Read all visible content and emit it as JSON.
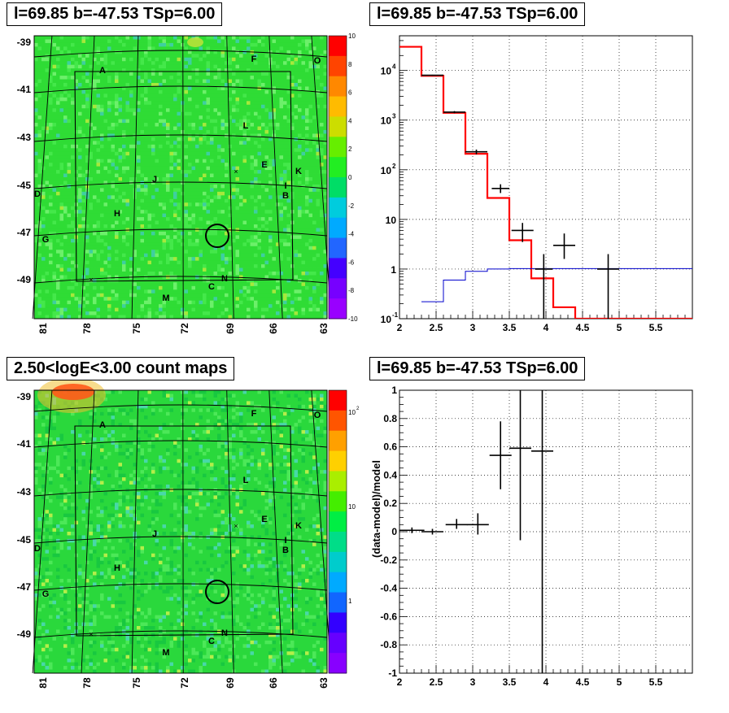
{
  "titles": {
    "tl": "l=69.85 b=-47.53 TSp=6.00",
    "tr": "l=69.85 b=-47.53 TSp=6.00",
    "bl": "2.50<logE<3.00 count maps",
    "br": "l=69.85 b=-47.53 TSp=6.00"
  },
  "colors": {
    "data": "#000000",
    "model": "#ff0000",
    "background_model": "#0000cc",
    "map_base": "#22dd22"
  },
  "maps": {
    "lon_ticks": [
      "81",
      "78",
      "75",
      "72",
      "69",
      "66",
      "63"
    ],
    "lat_ticks": [
      "-39",
      "-41",
      "-43",
      "-45",
      "-47",
      "-49"
    ],
    "source_labels": [
      "A",
      "F",
      "O",
      "L",
      "E",
      "K",
      "I",
      "B",
      "J",
      "D",
      "H",
      "G",
      "N",
      "C",
      "M"
    ],
    "residual_scale": [
      "10",
      "8",
      "6",
      "4",
      "2",
      "0",
      "-2",
      "-4",
      "-6",
      "-8",
      "-10"
    ],
    "count_scale": [
      "10",
      "2",
      "10",
      "1"
    ]
  },
  "chart_data": [
    {
      "type": "line",
      "title": "l=69.85 b=-47.53 TSp=6.00",
      "xlim": [
        2,
        6
      ],
      "ylim": [
        0.1,
        50000
      ],
      "yscale": "log",
      "grid": true,
      "x_ticks": [
        "2",
        "2.5",
        "3",
        "3.5",
        "4",
        "4.5",
        "5",
        "5.5"
      ],
      "y_ticks": [
        "10^-1",
        "1",
        "10",
        "10^2",
        "10^3",
        "10^4"
      ],
      "series": [
        {
          "style": "step",
          "bin_edges": [
            2.0,
            2.3,
            2.6,
            2.9,
            3.2,
            3.5,
            3.8,
            4.1,
            4.4,
            6.0
          ],
          "values": [
            30000,
            7800,
            1400,
            210,
            27,
            3.8,
            0.65,
            0.17,
            0.1
          ]
        },
        {
          "style": "step",
          "bin_edges": [
            2.3,
            2.6,
            2.9,
            3.2,
            3.5,
            6.0
          ],
          "values": [
            0.22,
            0.6,
            0.9,
            1.0,
            1.02
          ]
        },
        {
          "style": "errorbars",
          "points": [
            {
              "x": 2.45,
              "xerr": 0.15,
              "y": 8000,
              "ylo": 7800,
              "yhi": 8200
            },
            {
              "x": 2.75,
              "xerr": 0.15,
              "y": 1450,
              "ylo": 1380,
              "yhi": 1520
            },
            {
              "x": 3.05,
              "xerr": 0.15,
              "y": 230,
              "ylo": 205,
              "yhi": 255
            },
            {
              "x": 3.38,
              "xerr": 0.12,
              "y": 42,
              "ylo": 34,
              "yhi": 51
            },
            {
              "x": 3.68,
              "xerr": 0.15,
              "y": 6,
              "ylo": 3.5,
              "yhi": 8.5
            },
            {
              "x": 3.97,
              "xerr": 0.12,
              "y": 1.0,
              "ylo": 0.1,
              "yhi": 2.0
            },
            {
              "x": 4.25,
              "xerr": 0.15,
              "y": 3,
              "ylo": 1.6,
              "yhi": 5.2
            },
            {
              "x": 4.85,
              "xerr": 0.15,
              "y": 1.0,
              "ylo": 0.1,
              "yhi": 2.0
            }
          ]
        }
      ]
    },
    {
      "type": "scatter",
      "title": "l=69.85 b=-47.53 TSp=6.00",
      "ylabel": "(data-model)/model",
      "xlim": [
        2,
        6
      ],
      "ylim": [
        -1,
        1
      ],
      "grid": true,
      "x_ticks": [
        "2",
        "2.5",
        "3",
        "3.5",
        "4",
        "4.5",
        "5",
        "5.5"
      ],
      "y_ticks": [
        "-1",
        "-0.8",
        "-0.6",
        "-0.4",
        "-0.2",
        "0",
        "0.2",
        "0.4",
        "0.6",
        "0.8",
        "1"
      ],
      "points": [
        {
          "x": 2.17,
          "xerr": 0.17,
          "y": 0.01,
          "ylo": -0.01,
          "yhi": 0.03
        },
        {
          "x": 2.45,
          "xerr": 0.15,
          "y": 0.0,
          "ylo": -0.02,
          "yhi": 0.02
        },
        {
          "x": 2.78,
          "xerr": 0.15,
          "y": 0.05,
          "ylo": 0.02,
          "yhi": 0.09
        },
        {
          "x": 3.07,
          "xerr": 0.15,
          "y": 0.05,
          "ylo": -0.02,
          "yhi": 0.13
        },
        {
          "x": 3.38,
          "xerr": 0.15,
          "y": 0.54,
          "ylo": 0.3,
          "yhi": 0.78
        },
        {
          "x": 3.65,
          "xerr": 0.15,
          "y": 0.59,
          "ylo": -0.06,
          "yhi": 1.0
        },
        {
          "x": 3.95,
          "xerr": 0.15,
          "y": 0.57,
          "ylo": -1.0,
          "yhi": 1.0
        }
      ]
    }
  ]
}
